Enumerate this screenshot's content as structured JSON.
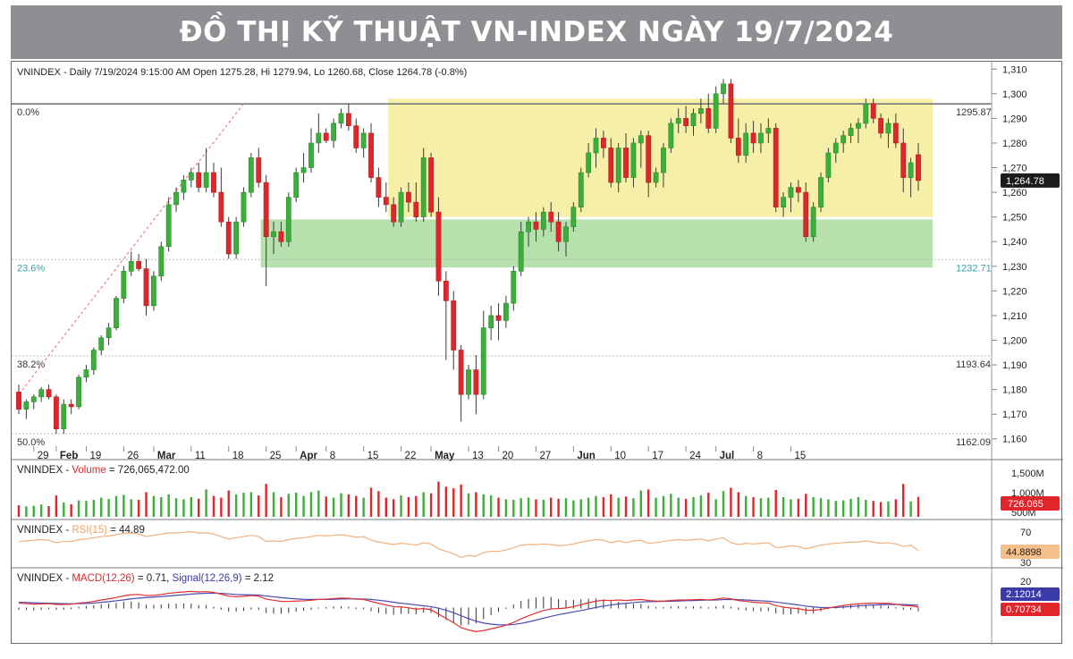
{
  "banner": {
    "title": "ĐỒ THỊ KỸ THUẬT VN-INDEX NGÀY 19/7/2024"
  },
  "colors": {
    "up": "#3cae3c",
    "down": "#e0262b",
    "zone_yellow": "#f6efa8",
    "zone_green": "#b6e0ac",
    "rsi": "#f2b07a",
    "macd": "#e33030",
    "signal": "#4a4ab8"
  },
  "price_panel": {
    "info": "VNINDEX - Daily 7/19/2024 9:15:00 AM Open 1275.28, Hi 1279.94, Lo 1260.68, Close 1264.78 (-0.8%)",
    "fib_levels": [
      {
        "pct": "0.0%",
        "value": "1295.87",
        "price": 1295.87
      },
      {
        "pct": "23.6%",
        "value": "1232.71",
        "price": 1232.71
      },
      {
        "pct": "38.2%",
        "value": "1193.64",
        "price": 1193.64
      },
      {
        "pct": "50.0%",
        "value": "1162.09",
        "price": 1162.09
      }
    ],
    "last_price_tag": "1,264.78",
    "y_ticks": [
      "1,310",
      "1,300",
      "1,290",
      "1,280",
      "1,270",
      "1,260",
      "1,250",
      "1,240",
      "1,230",
      "1,220",
      "1,210",
      "1,200",
      "1,190",
      "1,180",
      "1,170",
      "1,160"
    ],
    "x_labels": [
      "29",
      "Feb",
      "19",
      "26",
      "Mar",
      "11",
      "18",
      "25",
      "Apr",
      "8",
      "15",
      "22",
      "May",
      "13",
      "20",
      "27",
      "Jun",
      "10",
      "17",
      "24",
      "Jul",
      "8",
      "15"
    ]
  },
  "volume_panel": {
    "label_prefix": "VNINDEX - ",
    "label_name": "Volume",
    "label_value": " = 726,065,472.00",
    "ticks": [
      "1,500M",
      "1,000M",
      "500M"
    ],
    "tag": "726.065"
  },
  "rsi_panel": {
    "label_prefix": "VNINDEX - ",
    "label_name": "RSI(15)",
    "label_value": " = 44.89",
    "ticks": [
      "70",
      "30"
    ],
    "tag": "44.8898"
  },
  "macd_panel": {
    "label_prefix": "VNINDEX - ",
    "label_name": "MACD(12,26)",
    "label_mid": " = 0.71, ",
    "label_name2": "Signal(12,26,9)",
    "label_value": " = 2.12",
    "ticks": [
      "20"
    ],
    "tag_signal": "2.12014",
    "tag_macd": "0.70734"
  },
  "chart_data": {
    "type": "candlestick",
    "title": "ĐỒ THỊ KỸ THUẬT VN-INDEX NGÀY 19/7/2024",
    "ylim": [
      1157,
      1313
    ],
    "x_labels": [
      "29",
      "Feb",
      "19",
      "26",
      "Mar",
      "11",
      "18",
      "25",
      "Apr",
      "8",
      "15",
      "22",
      "May",
      "13",
      "20",
      "27",
      "Jun",
      "10",
      "17",
      "24",
      "Jul",
      "8",
      "15"
    ],
    "ohlc": [
      [
        1179,
        1182,
        1170,
        1172
      ],
      [
        1172,
        1176,
        1168,
        1175
      ],
      [
        1175,
        1178,
        1172,
        1177
      ],
      [
        1177,
        1181,
        1175,
        1180
      ],
      [
        1180,
        1182,
        1176,
        1177
      ],
      [
        1177,
        1178,
        1162,
        1164
      ],
      [
        1164,
        1176,
        1162,
        1174
      ],
      [
        1174,
        1176,
        1170,
        1173
      ],
      [
        1173,
        1186,
        1172,
        1185
      ],
      [
        1185,
        1190,
        1183,
        1188
      ],
      [
        1188,
        1197,
        1186,
        1196
      ],
      [
        1196,
        1202,
        1194,
        1201
      ],
      [
        1201,
        1207,
        1198,
        1205
      ],
      [
        1205,
        1218,
        1204,
        1217
      ],
      [
        1217,
        1230,
        1215,
        1228
      ],
      [
        1228,
        1236,
        1226,
        1232
      ],
      [
        1232,
        1235,
        1228,
        1229
      ],
      [
        1229,
        1233,
        1210,
        1214
      ],
      [
        1214,
        1228,
        1212,
        1226
      ],
      [
        1226,
        1240,
        1224,
        1238
      ],
      [
        1238,
        1258,
        1236,
        1255
      ],
      [
        1255,
        1262,
        1252,
        1260
      ],
      [
        1260,
        1267,
        1257,
        1265
      ],
      [
        1265,
        1270,
        1262,
        1268
      ],
      [
        1268,
        1272,
        1260,
        1262
      ],
      [
        1262,
        1278,
        1260,
        1268
      ],
      [
        1268,
        1272,
        1258,
        1260
      ],
      [
        1260,
        1270,
        1246,
        1248
      ],
      [
        1248,
        1250,
        1233,
        1235
      ],
      [
        1235,
        1250,
        1233,
        1248
      ],
      [
        1248,
        1262,
        1246,
        1260
      ],
      [
        1260,
        1276,
        1258,
        1274
      ],
      [
        1274,
        1278,
        1262,
        1264
      ],
      [
        1264,
        1267,
        1222,
        1242
      ],
      [
        1242,
        1248,
        1235,
        1244
      ],
      [
        1244,
        1248,
        1238,
        1240
      ],
      [
        1240,
        1260,
        1238,
        1258
      ],
      [
        1258,
        1270,
        1256,
        1268
      ],
      [
        1268,
        1276,
        1264,
        1270
      ],
      [
        1270,
        1286,
        1268,
        1280
      ],
      [
        1280,
        1292,
        1276,
        1284
      ],
      [
        1284,
        1286,
        1280,
        1281
      ],
      [
        1281,
        1290,
        1278,
        1288
      ],
      [
        1288,
        1294,
        1286,
        1292
      ],
      [
        1292,
        1296,
        1285,
        1287
      ],
      [
        1287,
        1290,
        1276,
        1278
      ],
      [
        1278,
        1286,
        1274,
        1284
      ],
      [
        1284,
        1288,
        1264,
        1266
      ],
      [
        1266,
        1270,
        1254,
        1258
      ],
      [
        1258,
        1264,
        1252,
        1255
      ],
      [
        1255,
        1258,
        1246,
        1248
      ],
      [
        1248,
        1262,
        1246,
        1260
      ],
      [
        1260,
        1264,
        1252,
        1256
      ],
      [
        1256,
        1264,
        1248,
        1250
      ],
      [
        1250,
        1278,
        1248,
        1274
      ],
      [
        1274,
        1276,
        1250,
        1252
      ],
      [
        1252,
        1258,
        1218,
        1224
      ],
      [
        1224,
        1228,
        1192,
        1216
      ],
      [
        1216,
        1220,
        1188,
        1196
      ],
      [
        1196,
        1198,
        1167,
        1178
      ],
      [
        1178,
        1190,
        1176,
        1188
      ],
      [
        1188,
        1194,
        1170,
        1178
      ],
      [
        1178,
        1212,
        1176,
        1205
      ],
      [
        1205,
        1214,
        1200,
        1210
      ],
      [
        1210,
        1215,
        1200,
        1208
      ],
      [
        1208,
        1218,
        1205,
        1215
      ],
      [
        1215,
        1230,
        1212,
        1228
      ],
      [
        1228,
        1248,
        1226,
        1244
      ],
      [
        1244,
        1250,
        1238,
        1248
      ],
      [
        1248,
        1252,
        1240,
        1245
      ],
      [
        1245,
        1254,
        1242,
        1252
      ],
      [
        1252,
        1256,
        1244,
        1248
      ],
      [
        1248,
        1252,
        1236,
        1240
      ],
      [
        1240,
        1248,
        1234,
        1246
      ],
      [
        1246,
        1256,
        1244,
        1254
      ],
      [
        1254,
        1270,
        1252,
        1268
      ],
      [
        1268,
        1280,
        1266,
        1276
      ],
      [
        1276,
        1286,
        1270,
        1282
      ],
      [
        1282,
        1285,
        1274,
        1278
      ],
      [
        1278,
        1282,
        1262,
        1264
      ],
      [
        1264,
        1280,
        1260,
        1278
      ],
      [
        1278,
        1284,
        1264,
        1266
      ],
      [
        1266,
        1282,
        1262,
        1280
      ],
      [
        1280,
        1285,
        1270,
        1283
      ],
      [
        1283,
        1285,
        1258,
        1264
      ],
      [
        1264,
        1270,
        1262,
        1268
      ],
      [
        1268,
        1280,
        1262,
        1278
      ],
      [
        1278,
        1290,
        1276,
        1288
      ],
      [
        1288,
        1294,
        1284,
        1290
      ],
      [
        1290,
        1295,
        1284,
        1287
      ],
      [
        1287,
        1294,
        1283,
        1292
      ],
      [
        1292,
        1298,
        1288,
        1294
      ],
      [
        1294,
        1300,
        1284,
        1286
      ],
      [
        1286,
        1303,
        1284,
        1300
      ],
      [
        1300,
        1306,
        1296,
        1304
      ],
      [
        1304,
        1306,
        1280,
        1282
      ],
      [
        1282,
        1290,
        1272,
        1275
      ],
      [
        1275,
        1288,
        1272,
        1284
      ],
      [
        1284,
        1289,
        1276,
        1280
      ],
      [
        1280,
        1288,
        1276,
        1284
      ],
      [
        1284,
        1290,
        1280,
        1286
      ],
      [
        1286,
        1288,
        1252,
        1254
      ],
      [
        1254,
        1260,
        1250,
        1258
      ],
      [
        1258,
        1264,
        1252,
        1262
      ],
      [
        1262,
        1265,
        1256,
        1260
      ],
      [
        1260,
        1264,
        1240,
        1242
      ],
      [
        1242,
        1256,
        1240,
        1254
      ],
      [
        1254,
        1268,
        1252,
        1266
      ],
      [
        1266,
        1278,
        1264,
        1276
      ],
      [
        1276,
        1282,
        1272,
        1280
      ],
      [
        1280,
        1285,
        1276,
        1283
      ],
      [
        1283,
        1288,
        1280,
        1286
      ],
      [
        1286,
        1290,
        1280,
        1288
      ],
      [
        1288,
        1298,
        1286,
        1296
      ],
      [
        1296,
        1298,
        1288,
        1290
      ],
      [
        1290,
        1292,
        1282,
        1284
      ],
      [
        1284,
        1290,
        1278,
        1288
      ],
      [
        1288,
        1292,
        1278,
        1280
      ],
      [
        1280,
        1286,
        1260,
        1266
      ],
      [
        1266,
        1274,
        1258,
        1272
      ],
      [
        1275.28,
        1279.94,
        1260.68,
        1264.78
      ]
    ],
    "volume_m": [
      420,
      380,
      400,
      450,
      390,
      780,
      520,
      460,
      600,
      580,
      620,
      700,
      650,
      760,
      800,
      640,
      620,
      900,
      760,
      720,
      820,
      680,
      640,
      720,
      660,
      1000,
      760,
      700,
      960,
      820,
      880,
      900,
      780,
      1200,
      900,
      720,
      840,
      880,
      760,
      900,
      960,
      740,
      700,
      860,
      820,
      760,
      700,
      1060,
      940,
      700,
      640,
      780,
      720,
      760,
      900,
      860,
      1280,
      1100,
      1040,
      1180,
      860,
      900,
      820,
      780,
      700,
      640,
      620,
      680,
      700,
      640,
      620,
      700,
      660,
      680,
      600,
      640,
      700,
      760,
      720,
      820,
      700,
      740,
      680,
      960,
      1000,
      700,
      760,
      840,
      700,
      660,
      720,
      780,
      880,
      640,
      940,
      1060,
      900,
      760,
      720,
      680,
      700,
      980,
      720,
      640,
      660,
      840,
      720,
      680,
      640,
      580,
      600,
      660,
      720,
      620,
      580,
      540,
      560,
      640,
      1200,
      560,
      726.07
    ],
    "rsi": [
      60,
      61,
      62,
      63,
      62,
      58,
      60,
      60,
      63,
      64,
      66,
      68,
      69,
      71,
      73,
      74,
      72,
      68,
      70,
      72,
      74,
      74,
      75,
      76,
      74,
      74,
      72,
      68,
      64,
      66,
      68,
      70,
      68,
      60,
      61,
      60,
      63,
      65,
      66,
      68,
      70,
      69,
      70,
      71,
      69,
      67,
      68,
      62,
      59,
      57,
      55,
      57,
      56,
      54,
      58,
      56,
      48,
      44,
      40,
      34,
      37,
      36,
      42,
      44,
      44,
      46,
      50,
      54,
      55,
      55,
      56,
      55,
      53,
      54,
      56,
      59,
      61,
      63,
      62,
      58,
      61,
      58,
      61,
      62,
      57,
      58,
      60,
      62,
      63,
      62,
      63,
      64,
      61,
      64,
      66,
      58,
      55,
      57,
      56,
      57,
      58,
      50,
      51,
      53,
      52,
      48,
      51,
      54,
      56,
      57,
      58,
      59,
      59,
      61,
      59,
      57,
      58,
      56,
      52,
      54,
      44.89
    ],
    "macd": [
      3.5,
      3.2,
      2.8,
      3.0,
      3.2,
      2.6,
      2.6,
      2.8,
      3.6,
      4.0,
      4.8,
      5.8,
      6.6,
      7.6,
      8.8,
      9.6,
      9.8,
      9.0,
      9.2,
      9.8,
      10.6,
      11.2,
      11.6,
      12.0,
      11.6,
      11.8,
      11.2,
      10.0,
      8.6,
      8.2,
      8.4,
      9.0,
      8.6,
      6.4,
      5.6,
      4.8,
      4.8,
      5.0,
      5.2,
      5.6,
      6.2,
      6.4,
      6.8,
      7.2,
      7.0,
      6.4,
      6.2,
      4.8,
      3.4,
      2.2,
      1.0,
      0.8,
      0.2,
      -0.8,
      -0.4,
      -1.2,
      -4.4,
      -7.4,
      -10.6,
      -14.2,
      -15.8,
      -17.0,
      -16.2,
      -15.0,
      -13.8,
      -12.4,
      -10.4,
      -7.8,
      -5.6,
      -3.6,
      -1.8,
      -0.6,
      -0.4,
      0.0,
      1.0,
      2.4,
      3.8,
      5.0,
      5.6,
      5.4,
      5.8,
      5.4,
      5.8,
      6.2,
      5.4,
      5.0,
      5.0,
      5.4,
      5.8,
      5.8,
      6.0,
      6.2,
      5.8,
      6.4,
      7.2,
      6.6,
      5.4,
      4.8,
      4.2,
      3.8,
      3.6,
      1.8,
      0.6,
      0.0,
      -0.4,
      -1.6,
      -1.6,
      -1.0,
      0.0,
      1.0,
      1.8,
      2.6,
      3.0,
      3.4,
      3.6,
      3.4,
      3.4,
      2.8,
      1.8,
      1.6,
      0.71
    ],
    "signal": [
      4.2,
      4.0,
      3.8,
      3.6,
      3.5,
      3.3,
      3.2,
      3.1,
      3.2,
      3.3,
      3.6,
      4.1,
      4.6,
      5.2,
      5.9,
      6.6,
      7.2,
      7.6,
      7.9,
      8.3,
      8.7,
      9.2,
      9.6,
      10.1,
      10.4,
      10.6,
      10.8,
      10.6,
      10.2,
      9.8,
      9.6,
      9.5,
      9.3,
      8.7,
      8.1,
      7.5,
      7.0,
      6.6,
      6.3,
      6.2,
      6.2,
      6.2,
      6.3,
      6.5,
      6.6,
      6.6,
      6.5,
      6.2,
      5.6,
      5.0,
      4.2,
      3.5,
      2.9,
      2.2,
      1.6,
      1.0,
      -0.1,
      -1.6,
      -3.4,
      -5.6,
      -7.6,
      -9.5,
      -10.8,
      -11.6,
      -12.1,
      -12.2,
      -11.9,
      -11.1,
      -10.0,
      -8.7,
      -7.3,
      -6.0,
      -4.8,
      -3.8,
      -2.8,
      -1.8,
      -0.7,
      0.4,
      1.4,
      2.2,
      2.9,
      3.4,
      3.9,
      4.4,
      4.6,
      4.7,
      4.8,
      4.9,
      5.1,
      5.3,
      5.4,
      5.6,
      5.7,
      5.8,
      6.1,
      6.2,
      6.0,
      5.8,
      5.5,
      5.2,
      4.9,
      4.3,
      3.6,
      2.9,
      2.2,
      1.4,
      0.8,
      0.4,
      0.3,
      0.4,
      0.7,
      1.1,
      1.5,
      1.9,
      2.2,
      2.4,
      2.6,
      2.6,
      2.5,
      2.3,
      2.12
    ]
  }
}
